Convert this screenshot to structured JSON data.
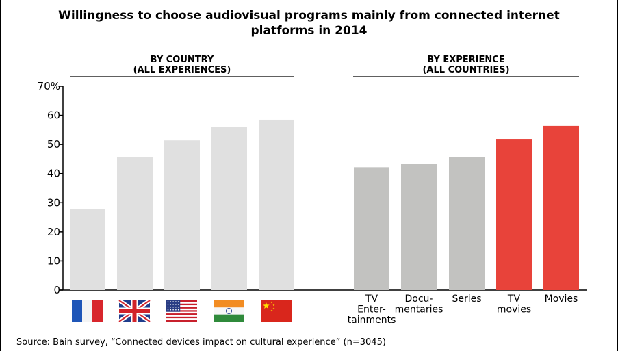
{
  "chart_data": [
    {
      "type": "bar",
      "title": "Willingness to choose audiovisual programs mainly from connected internet platforms in 2014",
      "panel_heading": [
        "BY COUNTRY",
        "(ALL EXPERIENCES)"
      ],
      "categories": [
        "France",
        "United Kingdom",
        "United States",
        "India",
        "China"
      ],
      "category_icons": [
        "france-flag-icon",
        "uk-flag-icon",
        "usa-flag-icon",
        "india-flag-icon",
        "china-flag-icon"
      ],
      "values": [
        27.8,
        45.6,
        51.4,
        55.9,
        58.5
      ],
      "bar_color": "#e0e0e0",
      "yticks": [
        "0",
        "10",
        "20",
        "30",
        "40",
        "50",
        "60",
        "70%"
      ],
      "ylim": [
        0,
        70
      ]
    },
    {
      "type": "bar",
      "panel_heading": [
        "BY EXPERIENCE",
        "(ALL COUNTRIES)"
      ],
      "categories": [
        [
          "TV",
          "Enter-",
          "tainments"
        ],
        [
          "Docu-",
          "mentaries"
        ],
        [
          "Series"
        ],
        [
          "TV",
          "movies"
        ],
        [
          "Movies"
        ]
      ],
      "values": [
        42.2,
        43.4,
        45.8,
        51.9,
        56.4
      ],
      "bar_colors": [
        "#c2c2c0",
        "#c2c2c0",
        "#c2c2c0",
        "#e8433a",
        "#e8433a"
      ],
      "ylim": [
        0,
        70
      ]
    }
  ],
  "title_lines": [
    "Willingness to choose audiovisual programs mainly from connected internet",
    "platforms in 2014"
  ],
  "source": "Source: Bain survey, “Connected devices impact on cultural experience” (n=3045)"
}
